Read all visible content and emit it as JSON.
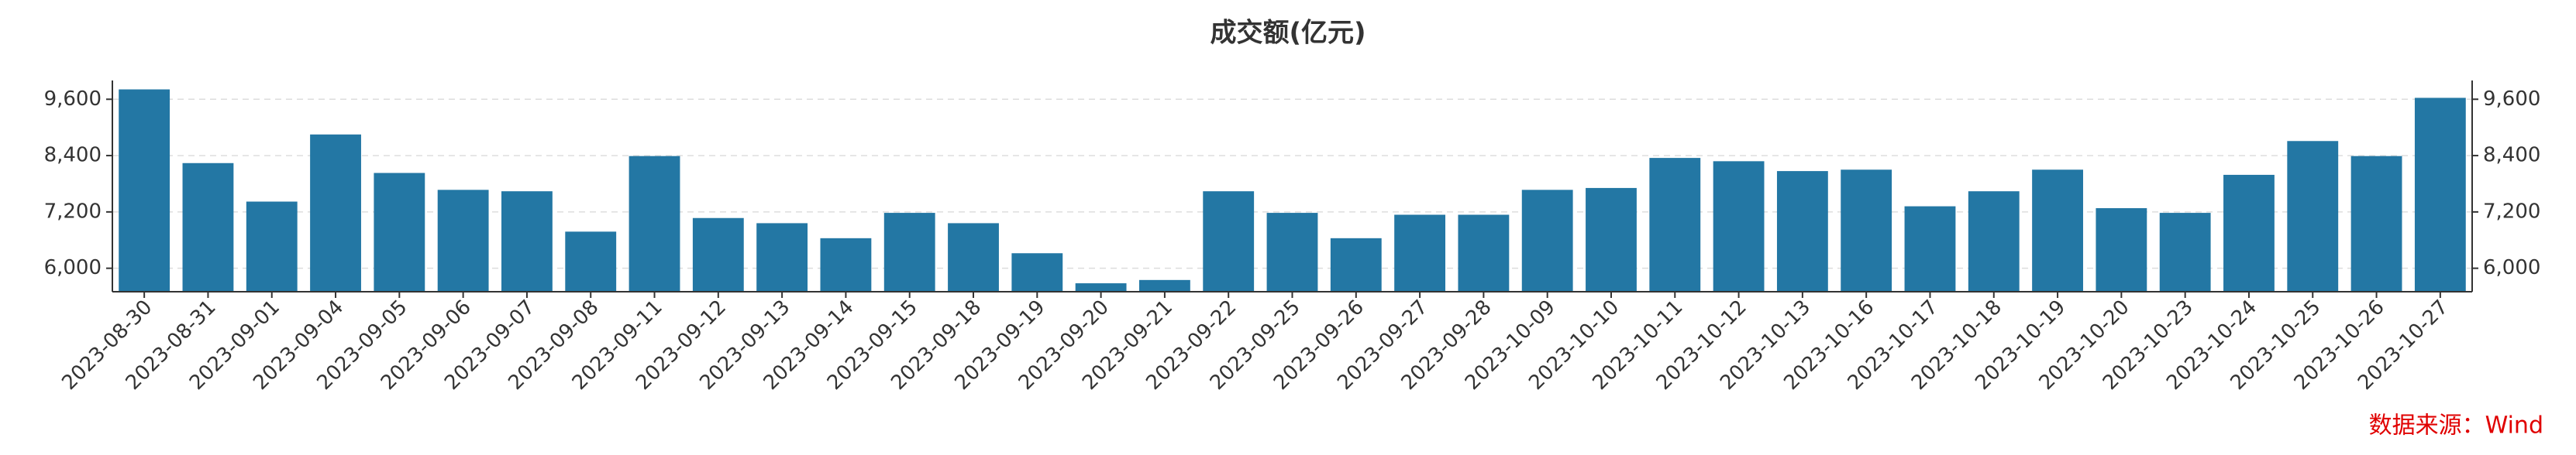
{
  "chart_data": {
    "type": "bar",
    "title": "成交额(亿元)",
    "categories": [
      "2023-08-30",
      "2023-08-31",
      "2023-09-01",
      "2023-09-04",
      "2023-09-05",
      "2023-09-06",
      "2023-09-07",
      "2023-09-08",
      "2023-09-11",
      "2023-09-12",
      "2023-09-13",
      "2023-09-14",
      "2023-09-15",
      "2023-09-18",
      "2023-09-19",
      "2023-09-20",
      "2023-09-21",
      "2023-09-22",
      "2023-09-25",
      "2023-09-26",
      "2023-09-27",
      "2023-09-28",
      "2023-10-09",
      "2023-10-10",
      "2023-10-11",
      "2023-10-12",
      "2023-10-13",
      "2023-10-16",
      "2023-10-17",
      "2023-10-18",
      "2023-10-19",
      "2023-10-20",
      "2023-10-23",
      "2023-10-24",
      "2023-10-25",
      "2023-10-26",
      "2023-10-27"
    ],
    "values": [
      9810,
      8240,
      7420,
      8850,
      8030,
      7670,
      7640,
      6780,
      8390,
      7070,
      6960,
      6640,
      7180,
      6960,
      6320,
      5680,
      5750,
      7640,
      7180,
      6640,
      7140,
      7140,
      7670,
      7710,
      8350,
      8280,
      8070,
      8100,
      7320,
      7640,
      8100,
      7280,
      7180,
      7990,
      8710,
      8390,
      9630
    ],
    "color": "#2377a4",
    "ylim": [
      5500,
      10000
    ],
    "yticks": [
      {
        "value": 6000,
        "label": "6,000"
      },
      {
        "value": 7200,
        "label": "7,200"
      },
      {
        "value": 8400,
        "label": "8,400"
      },
      {
        "value": 9600,
        "label": "9,600"
      }
    ],
    "grid": true,
    "source": "数据来源：Wind"
  }
}
